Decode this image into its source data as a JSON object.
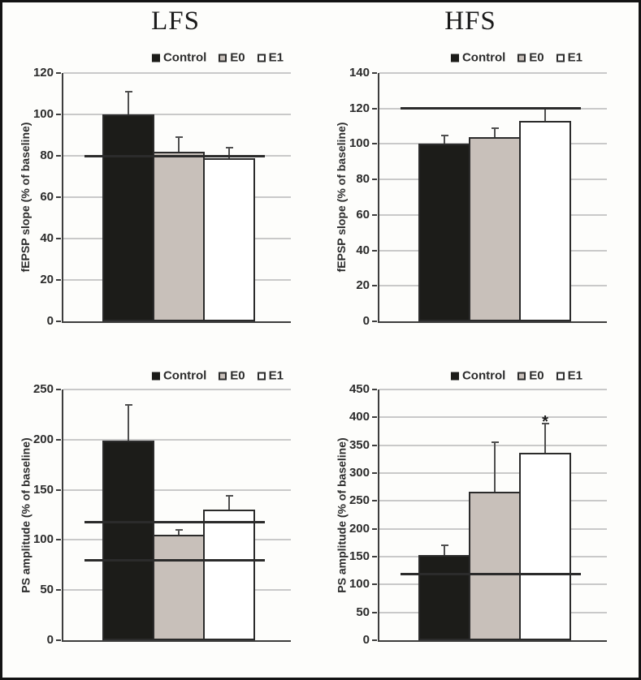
{
  "figure": {
    "column_titles": [
      "LFS",
      "HFS"
    ],
    "legend_items": [
      {
        "label": "Control"
      },
      {
        "label": "E0"
      },
      {
        "label": "E1"
      }
    ],
    "colors": {
      "control_fill": "#1c1c19",
      "e0_fill": "#c8c0ba",
      "e1_fill": "#ffffff",
      "bar_border": "#2b2b2b",
      "gridline": "#c9c9c9",
      "axis": "#3d3d3d",
      "reference_line": "#2b2b2b",
      "error_bar": "#4f4f4f",
      "background": "#fdfdfb",
      "frame": "#141414"
    }
  },
  "chart_data": [
    {
      "id": "lfs-fepsp-slope",
      "type": "bar",
      "group": "LFS",
      "title": "LFS",
      "xlabel": "",
      "ylabel": "fEPSP slope (% of baseline)",
      "ylim": [
        0,
        120
      ],
      "ytick_step": 20,
      "grid": true,
      "legend_position": "top-center",
      "categories": [
        "Control",
        "E0",
        "E1"
      ],
      "values": [
        100,
        82,
        79
      ],
      "errors_plus": [
        11,
        7,
        5
      ],
      "reference_lines": [
        80
      ],
      "annotations": []
    },
    {
      "id": "hfs-fepsp-slope",
      "type": "bar",
      "group": "HFS",
      "title": "HFS",
      "xlabel": "",
      "ylabel": "fEPSP slope (% of baseline)",
      "ylim": [
        0,
        140
      ],
      "ytick_step": 20,
      "grid": true,
      "legend_position": "top-center",
      "categories": [
        "Control",
        "E0",
        "E1"
      ],
      "values": [
        100,
        104,
        113
      ],
      "errors_plus": [
        5,
        5,
        7
      ],
      "reference_lines": [
        120
      ],
      "annotations": []
    },
    {
      "id": "lfs-ps-amplitude",
      "type": "bar",
      "group": "LFS",
      "title": "",
      "xlabel": "",
      "ylabel": "PS amplitude (% of baseline)",
      "ylim": [
        0,
        250
      ],
      "ytick_step": 50,
      "grid": true,
      "legend_position": "top-center",
      "categories": [
        "Control",
        "E0",
        "E1"
      ],
      "values": [
        199,
        105,
        130
      ],
      "errors_plus": [
        36,
        5,
        14
      ],
      "reference_lines": [
        118,
        80
      ],
      "annotations": []
    },
    {
      "id": "hfs-ps-amplitude",
      "type": "bar",
      "group": "HFS",
      "title": "",
      "xlabel": "",
      "ylabel": "PS amplitude (% of baseline)",
      "ylim": [
        0,
        450
      ],
      "ytick_step": 50,
      "grid": true,
      "legend_position": "top-center",
      "categories": [
        "Control",
        "E0",
        "E1"
      ],
      "values": [
        153,
        266,
        337
      ],
      "errors_plus": [
        17,
        89,
        52
      ],
      "reference_lines": [
        118
      ],
      "annotations": [
        {
          "text": "*",
          "category": "E1",
          "y": 400
        }
      ]
    }
  ]
}
